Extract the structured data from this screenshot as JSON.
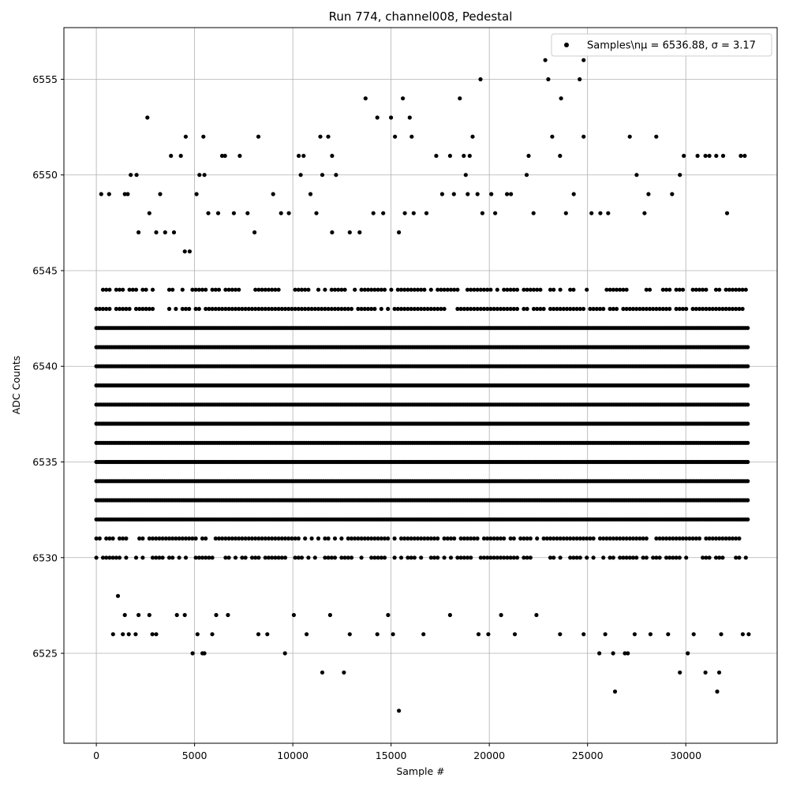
{
  "chart_data": {
    "type": "scatter",
    "title": "Run 774, channel008, Pedestal",
    "xlabel": "Sample #",
    "ylabel": "ADC Counts",
    "xlim": [
      -1650,
      34650
    ],
    "ylim": [
      6520.3,
      6557.7
    ],
    "xticks": [
      0,
      5000,
      10000,
      15000,
      20000,
      25000,
      30000
    ],
    "yticks": [
      6525,
      6530,
      6535,
      6540,
      6545,
      6550,
      6555
    ],
    "grid": true,
    "legend_position": "top-right",
    "marker_color": "#000000",
    "series": [
      {
        "name": "Samples\\nμ = 6536.88, σ = 3.17",
        "x_range": [
          0,
          33200
        ],
        "dense_rows": [
          6530,
          6531,
          6532,
          6533,
          6534,
          6535,
          6536,
          6537,
          6538,
          6539,
          6540,
          6541,
          6542,
          6543,
          6544
        ],
        "sparse_points": [
          [
            250,
            6549
          ],
          [
            650,
            6549
          ],
          [
            1600,
            6549
          ],
          [
            1450,
            6549
          ],
          [
            3250,
            6549
          ],
          [
            2700,
            6548
          ],
          [
            2150,
            6547
          ],
          [
            3050,
            6547
          ],
          [
            3500,
            6547
          ],
          [
            3950,
            6547
          ],
          [
            4500,
            6546
          ],
          [
            4750,
            6546
          ],
          [
            5100,
            6549
          ],
          [
            5250,
            6550
          ],
          [
            5500,
            6550
          ],
          [
            5450,
            6552
          ],
          [
            4550,
            6552
          ],
          [
            4300,
            6551
          ],
          [
            3800,
            6551
          ],
          [
            2600,
            6553
          ],
          [
            1750,
            6550
          ],
          [
            2050,
            6550
          ],
          [
            5700,
            6548
          ],
          [
            6200,
            6548
          ],
          [
            6400,
            6551
          ],
          [
            6550,
            6551
          ],
          [
            7300,
            6551
          ],
          [
            7000,
            6548
          ],
          [
            7700,
            6548
          ],
          [
            8050,
            6547
          ],
          [
            8250,
            6552
          ],
          [
            9000,
            6549
          ],
          [
            9400,
            6548
          ],
          [
            9800,
            6548
          ],
          [
            10300,
            6551
          ],
          [
            10400,
            6550
          ],
          [
            10550,
            6551
          ],
          [
            10900,
            6549
          ],
          [
            11200,
            6548
          ],
          [
            11400,
            6552
          ],
          [
            11500,
            6550
          ],
          [
            11800,
            6552
          ],
          [
            12000,
            6551
          ],
          [
            12200,
            6550
          ],
          [
            12000,
            6547
          ],
          [
            12900,
            6547
          ],
          [
            13400,
            6547
          ],
          [
            13700,
            6554
          ],
          [
            14100,
            6548
          ],
          [
            14300,
            6553
          ],
          [
            14600,
            6548
          ],
          [
            15000,
            6553
          ],
          [
            15200,
            6552
          ],
          [
            15400,
            6547
          ],
          [
            15600,
            6554
          ],
          [
            15700,
            6548
          ],
          [
            15950,
            6553
          ],
          [
            16050,
            6552
          ],
          [
            16150,
            6548
          ],
          [
            16800,
            6548
          ],
          [
            17300,
            6551
          ],
          [
            17600,
            6549
          ],
          [
            18000,
            6551
          ],
          [
            18200,
            6549
          ],
          [
            18500,
            6554
          ],
          [
            18700,
            6551
          ],
          [
            18800,
            6550
          ],
          [
            18900,
            6549
          ],
          [
            19000,
            6551
          ],
          [
            19150,
            6552
          ],
          [
            19400,
            6549
          ],
          [
            19550,
            6555
          ],
          [
            19650,
            6548
          ],
          [
            20100,
            6549
          ],
          [
            20300,
            6548
          ],
          [
            20900,
            6549
          ],
          [
            21100,
            6549
          ],
          [
            21900,
            6550
          ],
          [
            22000,
            6551
          ],
          [
            22250,
            6548
          ],
          [
            22850,
            6556
          ],
          [
            23000,
            6555
          ],
          [
            23200,
            6552
          ],
          [
            23600,
            6551
          ],
          [
            23650,
            6554
          ],
          [
            23900,
            6548
          ],
          [
            24300,
            6549
          ],
          [
            24600,
            6555
          ],
          [
            24800,
            6556
          ],
          [
            24800,
            6552
          ],
          [
            25200,
            6548
          ],
          [
            25650,
            6548
          ],
          [
            26050,
            6548
          ],
          [
            27150,
            6552
          ],
          [
            27500,
            6550
          ],
          [
            27900,
            6548
          ],
          [
            28100,
            6549
          ],
          [
            28500,
            6552
          ],
          [
            29300,
            6549
          ],
          [
            29700,
            6550
          ],
          [
            29900,
            6551
          ],
          [
            30600,
            6551
          ],
          [
            31000,
            6551
          ],
          [
            31200,
            6551
          ],
          [
            31550,
            6551
          ],
          [
            31900,
            6551
          ],
          [
            32100,
            6548
          ],
          [
            32800,
            6551
          ],
          [
            33000,
            6551
          ],
          [
            850,
            6526
          ],
          [
            1100,
            6528
          ],
          [
            1350,
            6526
          ],
          [
            1450,
            6527
          ],
          [
            1650,
            6526
          ],
          [
            2000,
            6526
          ],
          [
            2150,
            6527
          ],
          [
            2700,
            6527
          ],
          [
            2850,
            6526
          ],
          [
            3050,
            6526
          ],
          [
            4100,
            6527
          ],
          [
            4500,
            6527
          ],
          [
            4900,
            6525
          ],
          [
            5150,
            6526
          ],
          [
            5400,
            6525
          ],
          [
            5500,
            6525
          ],
          [
            5900,
            6526
          ],
          [
            6100,
            6527
          ],
          [
            6700,
            6527
          ],
          [
            8250,
            6526
          ],
          [
            8700,
            6526
          ],
          [
            9600,
            6525
          ],
          [
            10050,
            6527
          ],
          [
            10700,
            6526
          ],
          [
            11500,
            6524
          ],
          [
            11900,
            6527
          ],
          [
            12600,
            6524
          ],
          [
            12900,
            6526
          ],
          [
            14300,
            6526
          ],
          [
            14850,
            6527
          ],
          [
            15100,
            6526
          ],
          [
            15400,
            6522
          ],
          [
            16650,
            6526
          ],
          [
            18000,
            6527
          ],
          [
            19450,
            6526
          ],
          [
            19950,
            6526
          ],
          [
            20600,
            6527
          ],
          [
            21300,
            6526
          ],
          [
            22400,
            6527
          ],
          [
            23600,
            6526
          ],
          [
            24800,
            6526
          ],
          [
            25600,
            6525
          ],
          [
            25900,
            6526
          ],
          [
            26300,
            6525
          ],
          [
            26400,
            6523
          ],
          [
            26900,
            6525
          ],
          [
            27050,
            6525
          ],
          [
            27400,
            6526
          ],
          [
            28200,
            6526
          ],
          [
            29100,
            6526
          ],
          [
            29700,
            6524
          ],
          [
            30100,
            6525
          ],
          [
            30400,
            6526
          ],
          [
            31000,
            6524
          ],
          [
            31600,
            6523
          ],
          [
            31700,
            6524
          ],
          [
            31800,
            6526
          ],
          [
            32900,
            6526
          ],
          [
            33200,
            6526
          ]
        ]
      }
    ]
  }
}
